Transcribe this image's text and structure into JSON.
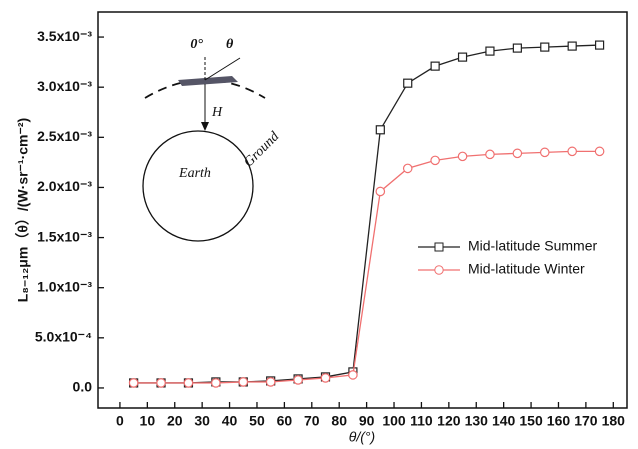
{
  "chart_data": {
    "type": "line",
    "x": [
      5,
      15,
      25,
      35,
      45,
      55,
      65,
      75,
      85,
      95,
      105,
      115,
      125,
      135,
      145,
      155,
      165,
      175
    ],
    "series": [
      {
        "name": "Mid-latitude Summer",
        "color": "#222222",
        "marker": "square",
        "values": [
          5e-05,
          5e-05,
          5e-05,
          6e-05,
          6e-05,
          7e-05,
          9e-05,
          0.00011,
          0.00016,
          0.002575,
          0.00304,
          0.00321,
          0.0033,
          0.00336,
          0.00339,
          0.0034,
          0.00341,
          0.00342
        ]
      },
      {
        "name": "Mid-latitude Winter",
        "color": "#f07070",
        "marker": "circle",
        "values": [
          5e-05,
          5e-05,
          5e-05,
          5e-05,
          6e-05,
          6e-05,
          8e-05,
          0.0001,
          0.00013,
          0.00196,
          0.00219,
          0.00227,
          0.00231,
          0.00233,
          0.00234,
          0.00235,
          0.00236,
          0.00236
        ]
      }
    ],
    "xlim": [
      -8,
      185
    ],
    "xticks": [
      0,
      10,
      20,
      30,
      40,
      50,
      60,
      70,
      80,
      90,
      100,
      110,
      120,
      130,
      140,
      150,
      160,
      170,
      180
    ],
    "ylim": [
      -0.0002,
      0.00375
    ],
    "yticks": [
      {
        "value": 0,
        "label": "0.0"
      },
      {
        "value": 0.0005,
        "label": "5.0x10⁻⁴"
      },
      {
        "value": 0.001,
        "label": "1.0x10⁻³"
      },
      {
        "value": 0.0015,
        "label": "1.5x10⁻³"
      },
      {
        "value": 0.002,
        "label": "2.0x10⁻³"
      },
      {
        "value": 0.0025,
        "label": "2.5x10⁻³"
      },
      {
        "value": 0.003,
        "label": "3.0x10⁻³"
      },
      {
        "value": 0.0035,
        "label": "3.5x10⁻³"
      }
    ],
    "xlabel": "θ/(°)",
    "ylabel": "L₈₋₁₂μm（θ）/(W·sr⁻¹·cm⁻²)",
    "legend": "right",
    "annotations": [
      "0°",
      "θ",
      "H",
      "Ground",
      "Earth"
    ]
  }
}
